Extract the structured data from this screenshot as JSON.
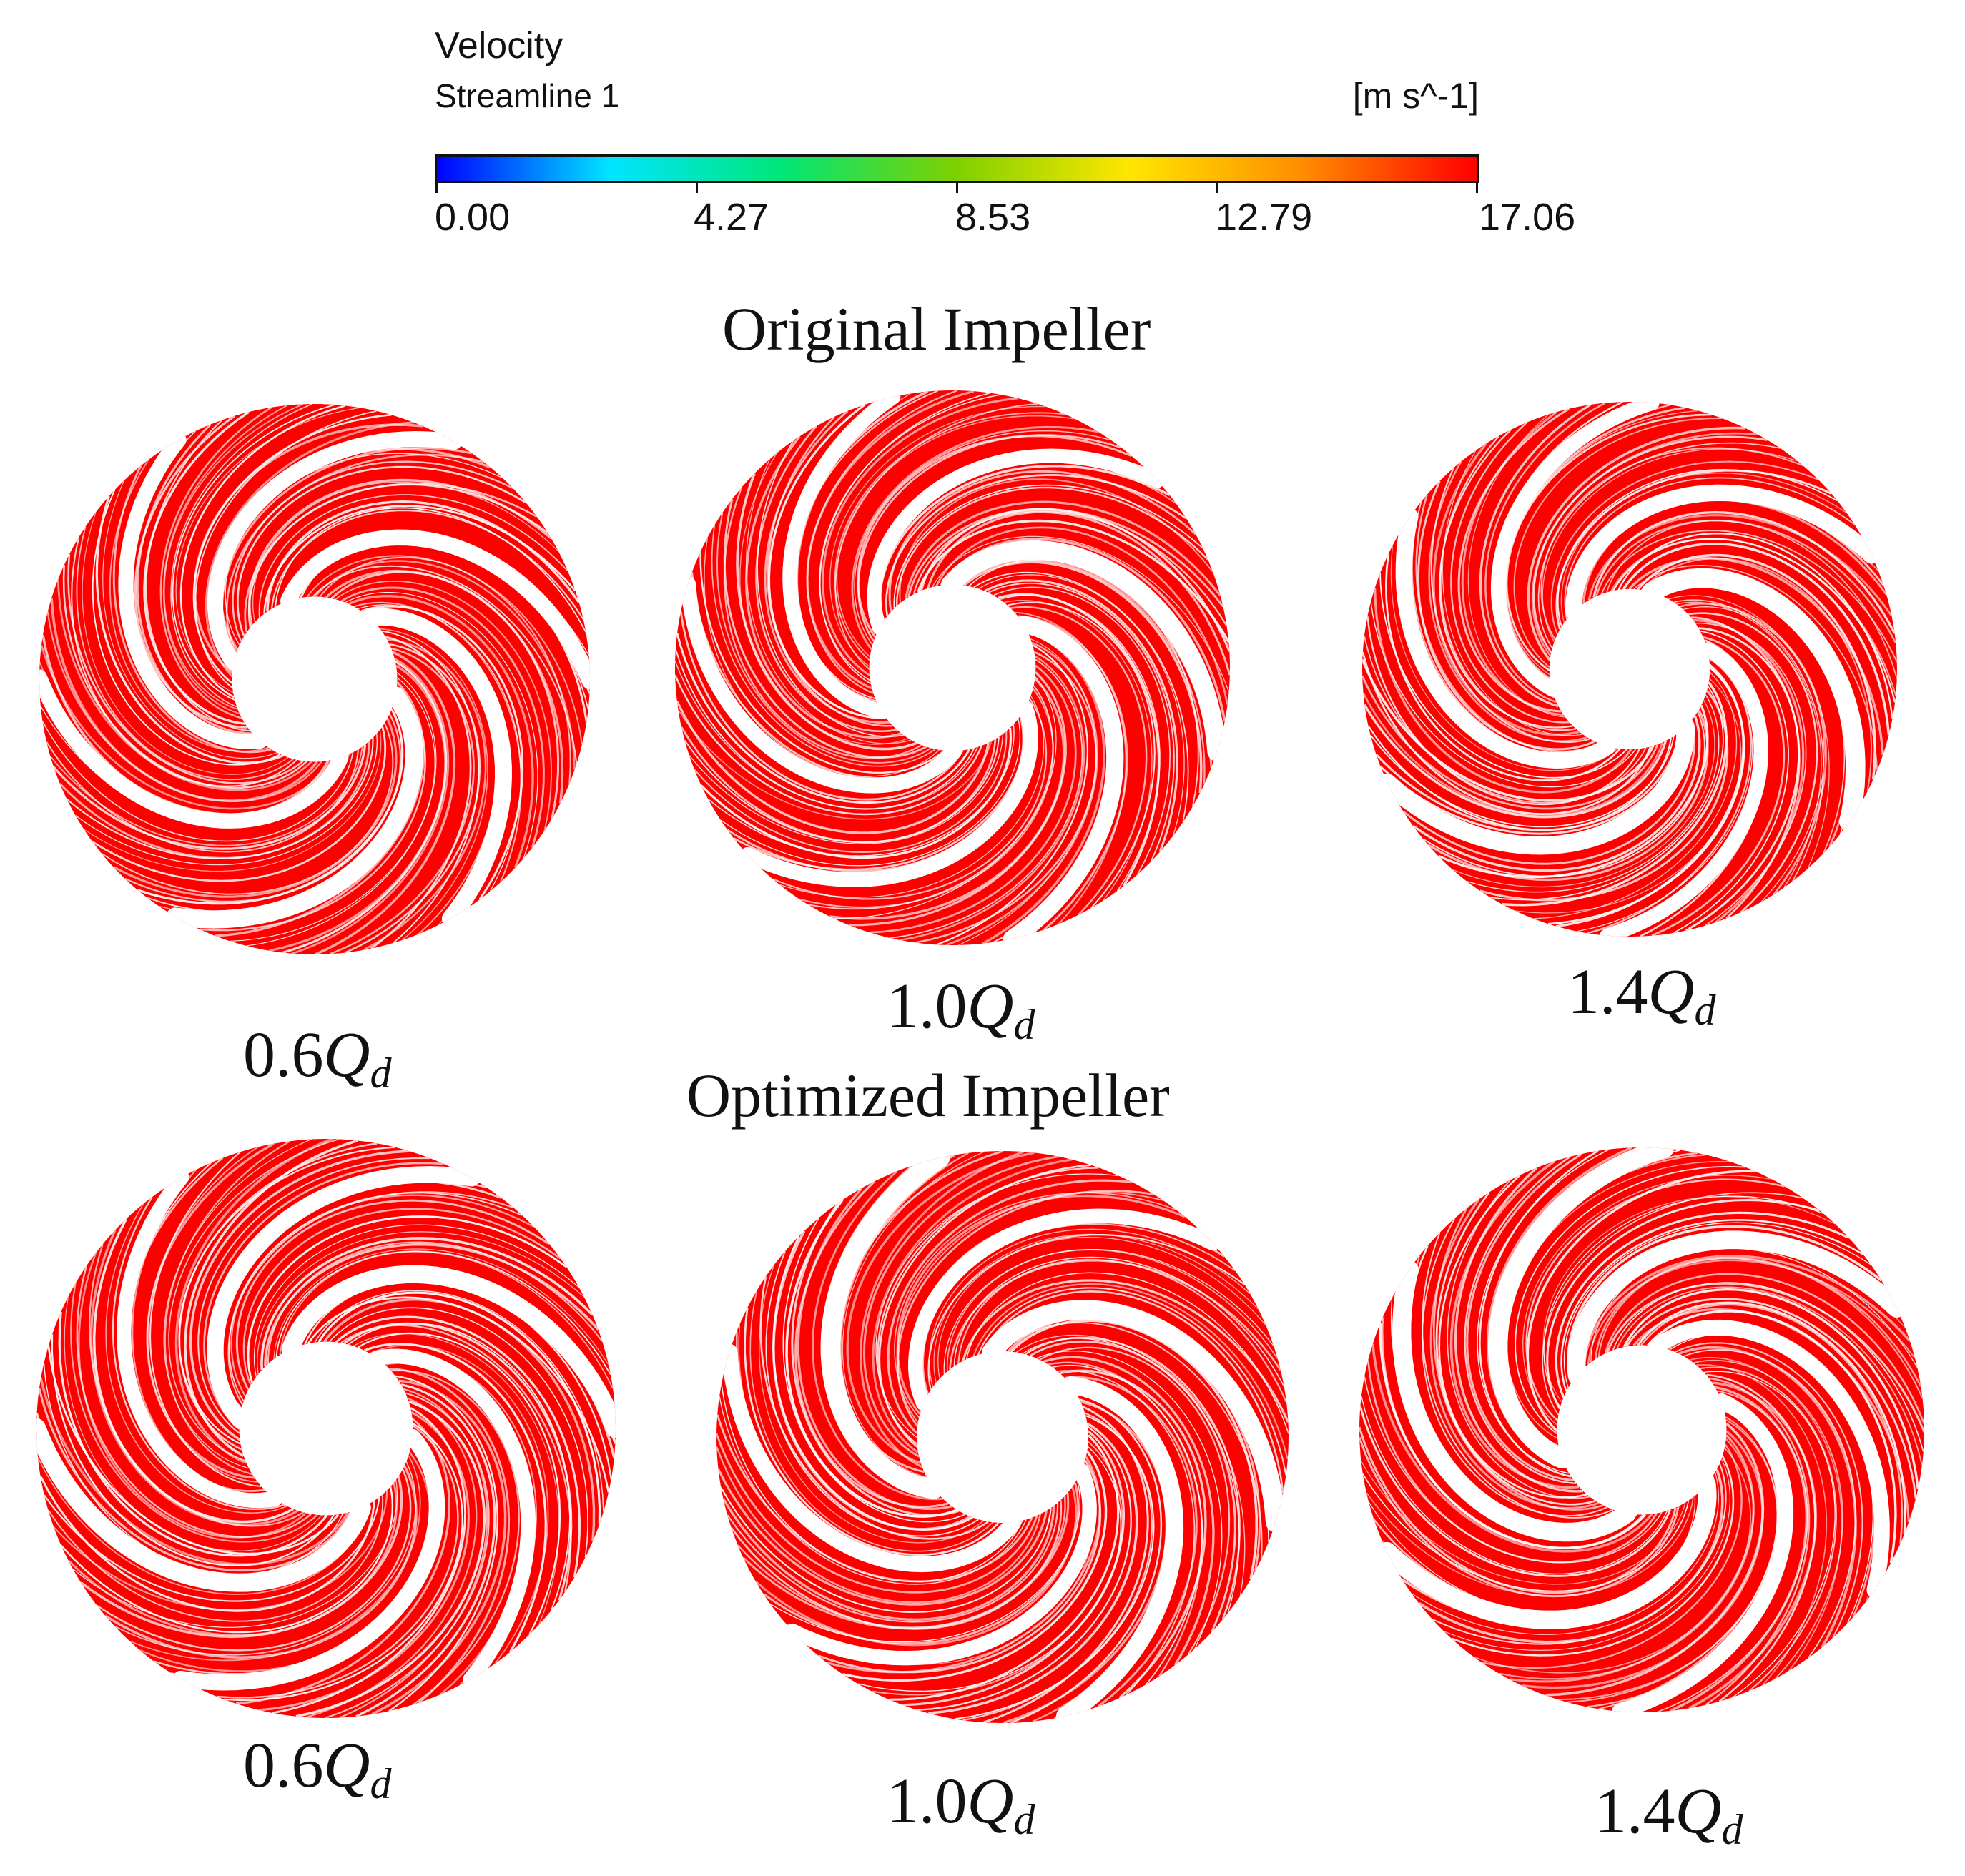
{
  "legend": {
    "title": "Velocity",
    "subtitle": "Streamline 1",
    "unit": "[m s^-1]",
    "ticks": [
      "0.00",
      "4.27",
      "8.53",
      "12.79",
      "17.06"
    ],
    "min": 0.0,
    "max": 17.06,
    "colorscale": [
      "#0000ff",
      "#00e5ff",
      "#00e676",
      "#7fd000",
      "#ffe600",
      "#ff8c00",
      "#ff0000"
    ]
  },
  "sections": {
    "original": "Original Impeller",
    "optimized": "Optimized Impeller"
  },
  "cases": [
    {
      "value": "0.6",
      "q": "Q",
      "sub": "d"
    },
    {
      "value": "1.0",
      "q": "Q",
      "sub": "d"
    },
    {
      "value": "1.4",
      "q": "Q",
      "sub": "d"
    }
  ],
  "streamline_color": "#ff0000",
  "background_color": "#ffffff"
}
